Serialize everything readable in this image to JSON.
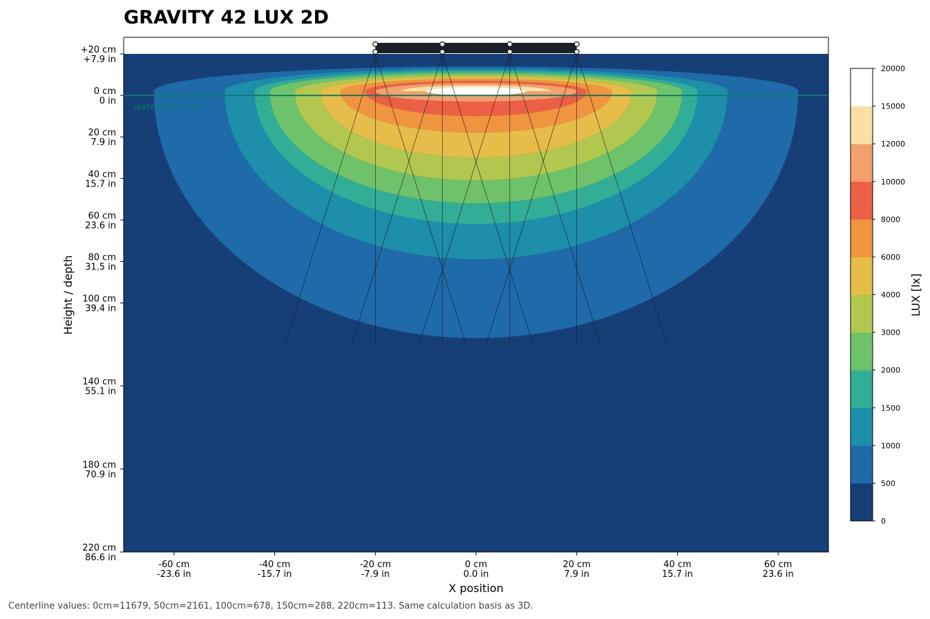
{
  "chart_data": {
    "type": "heatmap",
    "title": "GRAVITY 42 LUX 2D",
    "xlabel": "X position",
    "ylabel": "Height / depth",
    "colorbar_label": "LUX [lx]",
    "xlim_cm": [
      -70,
      70
    ],
    "ylim_cm": [
      -20,
      220
    ],
    "x_ticks": [
      {
        "value": -60,
        "cm": "-60 cm",
        "in": "-23.6 in"
      },
      {
        "value": -40,
        "cm": "-40 cm",
        "in": "-15.7 in"
      },
      {
        "value": -20,
        "cm": "-20 cm",
        "in": "-7.9 in"
      },
      {
        "value": 0,
        "cm": "0 cm",
        "in": "0.0 in"
      },
      {
        "value": 20,
        "cm": "20 cm",
        "in": "7.9 in"
      },
      {
        "value": 40,
        "cm": "40 cm",
        "in": "15.7 in"
      },
      {
        "value": 60,
        "cm": "60 cm",
        "in": "23.6 in"
      }
    ],
    "y_ticks": [
      {
        "value": -20,
        "cm": "+20 cm",
        "in": "+7.9 in"
      },
      {
        "value": 0,
        "cm": "0 cm",
        "in": "0 in"
      },
      {
        "value": 20,
        "cm": "20 cm",
        "in": "7.9 in"
      },
      {
        "value": 40,
        "cm": "40 cm",
        "in": "15.7 in"
      },
      {
        "value": 60,
        "cm": "60 cm",
        "in": "23.6 in"
      },
      {
        "value": 80,
        "cm": "80 cm",
        "in": "31.5 in"
      },
      {
        "value": 100,
        "cm": "100 cm",
        "in": "39.4 in"
      },
      {
        "value": 140,
        "cm": "140 cm",
        "in": "55.1 in"
      },
      {
        "value": 180,
        "cm": "180 cm",
        "in": "70.9 in"
      },
      {
        "value": 220,
        "cm": "220 cm",
        "in": "86.6 in"
      }
    ],
    "levels": [
      0,
      500,
      1000,
      1500,
      2000,
      3000,
      4000,
      6000,
      8000,
      10000,
      12000,
      15000,
      20000
    ],
    "level_colors": [
      "#173f77",
      "#1f6aa8",
      "#1e8fab",
      "#32ae96",
      "#6dc26a",
      "#b2c750",
      "#e6bd48",
      "#f0943f",
      "#ec6045",
      "#f4a06c",
      "#fbe0a5",
      "#ffffff"
    ],
    "waterline": {
      "depth_cm": 0,
      "label": "waterline 0 cm",
      "color": "#0e7c6e"
    },
    "fixture": {
      "x_range_cm": [
        -20,
        20
      ],
      "height_cm": -20,
      "color": "#1a2228"
    },
    "emitters_x_cm": [
      -20,
      -6.7,
      6.7,
      20
    ],
    "beam_depth_cm": 120,
    "beam_half_spread_cm": 18,
    "centerline_depth_cm": [
      0,
      50,
      100,
      150,
      220
    ],
    "centerline_lux": [
      11679,
      2161,
      678,
      288,
      113
    ],
    "footer": "Centerline values: 0cm=11679, 50cm=2161, 100cm=678, 150cm=288, 220cm=113. Same calculation basis as 3D."
  }
}
